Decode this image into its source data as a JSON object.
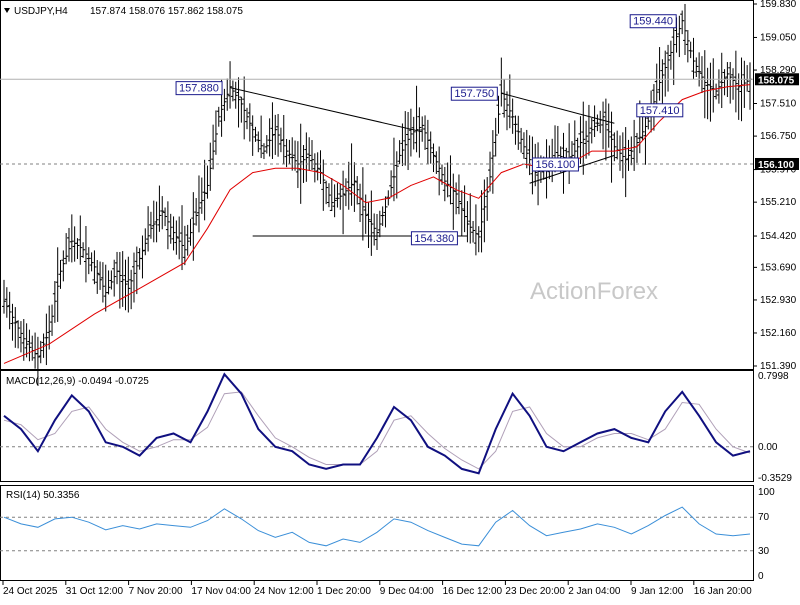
{
  "header": {
    "symbol": "USDJPY,H4",
    "ohlc": "157.874 158.076 157.862 158.075",
    "watermark": "ActionForex"
  },
  "chart_data": [
    {
      "type": "line",
      "name": "price-panel",
      "title": "USDJPY,H4  157.874 158.076 157.862 158.075",
      "ylim": [
        151.39,
        159.83
      ],
      "y_tick_labels": [
        "159.830",
        "159.050",
        "158.290",
        "157.510",
        "156.750",
        "155.970",
        "155.210",
        "154.420",
        "153.690",
        "152.930",
        "152.160",
        "151.390"
      ],
      "x_tick_labels": [
        "24 Oct 2025",
        "31 Oct 12:00",
        "7 Nov 20:00",
        "17 Nov 04:00",
        "24 Nov 12:00",
        "1 Dec 20:00",
        "9 Dec 04:00",
        "16 Dec 12:00",
        "23 Dec 20:00",
        "2 Jan 04:00",
        "9 Jan 12:00",
        "16 Jan 20:00"
      ],
      "current_price": "158.075",
      "support_level": "156.100",
      "price_points": [
        [
          0,
          152.9
        ],
        [
          2,
          152.4
        ],
        [
          4,
          151.9
        ],
        [
          6,
          151.6
        ],
        [
          8,
          152.2
        ],
        [
          10,
          153.6
        ],
        [
          12,
          154.3
        ],
        [
          14,
          154.1
        ],
        [
          16,
          153.7
        ],
        [
          18,
          153.1
        ],
        [
          20,
          153.6
        ],
        [
          22,
          153.2
        ],
        [
          24,
          153.9
        ],
        [
          26,
          154.6
        ],
        [
          28,
          155.0
        ],
        [
          30,
          154.5
        ],
        [
          32,
          154.1
        ],
        [
          34,
          154.9
        ],
        [
          36,
          155.6
        ],
        [
          38,
          157.2
        ],
        [
          40,
          157.9
        ],
        [
          42,
          157.5
        ],
        [
          44,
          156.9
        ],
        [
          46,
          156.4
        ],
        [
          48,
          156.9
        ],
        [
          50,
          156.4
        ],
        [
          52,
          156.1
        ],
        [
          54,
          156.3
        ],
        [
          56,
          155.9
        ],
        [
          58,
          155.2
        ],
        [
          60,
          155.4
        ],
        [
          62,
          155.7
        ],
        [
          64,
          154.9
        ],
        [
          66,
          154.5
        ],
        [
          68,
          155.3
        ],
        [
          70,
          156.3
        ],
        [
          72,
          156.8
        ],
        [
          74,
          157.0
        ],
        [
          76,
          156.3
        ],
        [
          78,
          155.7
        ],
        [
          80,
          155.4
        ],
        [
          82,
          154.7
        ],
        [
          84,
          154.4
        ],
        [
          86,
          155.8
        ],
        [
          88,
          157.75
        ],
        [
          90,
          157.2
        ],
        [
          92,
          156.5
        ],
        [
          94,
          155.9
        ],
        [
          96,
          156.0
        ],
        [
          98,
          156.3
        ],
        [
          100,
          156.2
        ],
        [
          102,
          156.6
        ],
        [
          104,
          156.9
        ],
        [
          106,
          157.2
        ],
        [
          108,
          156.5
        ],
        [
          110,
          156.2
        ],
        [
          112,
          156.6
        ],
        [
          114,
          157.1
        ],
        [
          116,
          158.0
        ],
        [
          118,
          158.7
        ],
        [
          120,
          159.44
        ],
        [
          122,
          158.5
        ],
        [
          124,
          158.0
        ],
        [
          126,
          157.8
        ],
        [
          128,
          158.2
        ],
        [
          130,
          157.9
        ],
        [
          132,
          158.075
        ]
      ],
      "ma_points": [
        [
          0,
          151.45
        ],
        [
          8,
          151.9
        ],
        [
          16,
          152.6
        ],
        [
          24,
          153.2
        ],
        [
          32,
          153.8
        ],
        [
          36,
          154.6
        ],
        [
          40,
          155.5
        ],
        [
          44,
          155.9
        ],
        [
          48,
          156.0
        ],
        [
          52,
          156.0
        ],
        [
          56,
          155.9
        ],
        [
          60,
          155.6
        ],
        [
          64,
          155.2
        ],
        [
          68,
          155.3
        ],
        [
          72,
          155.6
        ],
        [
          76,
          155.8
        ],
        [
          80,
          155.5
        ],
        [
          84,
          155.3
        ],
        [
          88,
          155.9
        ],
        [
          92,
          156.1
        ],
        [
          96,
          156.0
        ],
        [
          100,
          156.1
        ],
        [
          104,
          156.4
        ],
        [
          108,
          156.4
        ],
        [
          112,
          156.5
        ],
        [
          116,
          157.1
        ],
        [
          120,
          157.6
        ],
        [
          124,
          157.8
        ],
        [
          128,
          157.9
        ],
        [
          132,
          157.95
        ]
      ],
      "annotations": [
        {
          "text": "157.880",
          "x": 40,
          "y": 157.88
        },
        {
          "text": "157.750",
          "x": 88,
          "y": 157.75
        },
        {
          "text": "159.440",
          "x": 120,
          "y": 159.44
        },
        {
          "text": "157.410",
          "x": 124,
          "y": 157.41
        },
        {
          "text": "154.380",
          "x": 82,
          "y": 154.38
        },
        {
          "text": "156.100",
          "x": 102,
          "y": 156.1
        }
      ],
      "trendlines": [
        {
          "from": [
            40,
            157.88
          ],
          "to": [
            74,
            156.85
          ]
        },
        {
          "from": [
            88,
            157.75
          ],
          "to": [
            108,
            157.05
          ]
        },
        {
          "from": [
            93,
            155.65
          ],
          "to": [
            108,
            156.3
          ]
        },
        {
          "from": [
            44,
            154.42
          ],
          "to": [
            82,
            154.42
          ]
        }
      ],
      "grid": false
    },
    {
      "type": "line",
      "name": "macd-panel",
      "title": "MACD(12,26,9) -0.0494 -0.0725",
      "ylim": [
        -0.3529,
        0.7998
      ],
      "y_tick_labels": [
        "0.7998",
        "0.00",
        "-0.3529"
      ],
      "macd_points": [
        [
          0,
          0.35
        ],
        [
          3,
          0.2
        ],
        [
          6,
          -0.05
        ],
        [
          9,
          0.3
        ],
        [
          12,
          0.58
        ],
        [
          15,
          0.4
        ],
        [
          18,
          0.05
        ],
        [
          21,
          0.0
        ],
        [
          24,
          -0.1
        ],
        [
          27,
          0.1
        ],
        [
          30,
          0.15
        ],
        [
          33,
          0.05
        ],
        [
          36,
          0.4
        ],
        [
          39,
          0.82
        ],
        [
          42,
          0.6
        ],
        [
          45,
          0.2
        ],
        [
          48,
          0.0
        ],
        [
          51,
          -0.05
        ],
        [
          54,
          -0.2
        ],
        [
          57,
          -0.25
        ],
        [
          60,
          -0.2
        ],
        [
          63,
          -0.2
        ],
        [
          66,
          0.1
        ],
        [
          69,
          0.45
        ],
        [
          72,
          0.3
        ],
        [
          75,
          0.0
        ],
        [
          78,
          -0.1
        ],
        [
          81,
          -0.25
        ],
        [
          84,
          -0.3
        ],
        [
          87,
          0.2
        ],
        [
          90,
          0.6
        ],
        [
          93,
          0.35
        ],
        [
          96,
          0.0
        ],
        [
          99,
          -0.05
        ],
        [
          102,
          0.05
        ],
        [
          105,
          0.15
        ],
        [
          108,
          0.2
        ],
        [
          111,
          0.1
        ],
        [
          114,
          0.05
        ],
        [
          117,
          0.4
        ],
        [
          120,
          0.62
        ],
        [
          123,
          0.35
        ],
        [
          126,
          0.05
        ],
        [
          129,
          -0.1
        ],
        [
          132,
          -0.05
        ]
      ],
      "signal_points": [
        [
          0,
          0.3
        ],
        [
          3,
          0.25
        ],
        [
          6,
          0.08
        ],
        [
          9,
          0.15
        ],
        [
          12,
          0.4
        ],
        [
          15,
          0.45
        ],
        [
          18,
          0.2
        ],
        [
          21,
          0.05
        ],
        [
          24,
          -0.05
        ],
        [
          27,
          0.0
        ],
        [
          30,
          0.08
        ],
        [
          33,
          0.08
        ],
        [
          36,
          0.22
        ],
        [
          39,
          0.6
        ],
        [
          42,
          0.62
        ],
        [
          45,
          0.35
        ],
        [
          48,
          0.1
        ],
        [
          51,
          0.0
        ],
        [
          54,
          -0.12
        ],
        [
          57,
          -0.2
        ],
        [
          60,
          -0.2
        ],
        [
          63,
          -0.2
        ],
        [
          66,
          -0.05
        ],
        [
          69,
          0.3
        ],
        [
          72,
          0.35
        ],
        [
          75,
          0.15
        ],
        [
          78,
          -0.02
        ],
        [
          81,
          -0.15
        ],
        [
          84,
          -0.25
        ],
        [
          87,
          -0.05
        ],
        [
          90,
          0.4
        ],
        [
          93,
          0.45
        ],
        [
          96,
          0.15
        ],
        [
          99,
          0.0
        ],
        [
          102,
          0.0
        ],
        [
          105,
          0.1
        ],
        [
          108,
          0.15
        ],
        [
          111,
          0.15
        ],
        [
          114,
          0.08
        ],
        [
          117,
          0.2
        ],
        [
          120,
          0.5
        ],
        [
          123,
          0.48
        ],
        [
          126,
          0.2
        ],
        [
          129,
          0.0
        ],
        [
          132,
          -0.07
        ]
      ],
      "grid": false
    },
    {
      "type": "line",
      "name": "rsi-panel",
      "title": "RSI(14) 50.3356",
      "ylim": [
        0,
        100
      ],
      "y_tick_labels": [
        "100",
        "70",
        "30",
        "0"
      ],
      "levels": [
        70,
        30
      ],
      "rsi_points": [
        [
          0,
          70
        ],
        [
          3,
          62
        ],
        [
          6,
          58
        ],
        [
          9,
          68
        ],
        [
          12,
          70
        ],
        [
          15,
          64
        ],
        [
          18,
          55
        ],
        [
          21,
          60
        ],
        [
          24,
          56
        ],
        [
          27,
          62
        ],
        [
          30,
          60
        ],
        [
          33,
          58
        ],
        [
          36,
          66
        ],
        [
          39,
          80
        ],
        [
          42,
          68
        ],
        [
          45,
          54
        ],
        [
          48,
          46
        ],
        [
          51,
          52
        ],
        [
          54,
          40
        ],
        [
          57,
          36
        ],
        [
          60,
          44
        ],
        [
          63,
          40
        ],
        [
          66,
          52
        ],
        [
          69,
          68
        ],
        [
          72,
          64
        ],
        [
          75,
          54
        ],
        [
          78,
          46
        ],
        [
          81,
          38
        ],
        [
          84,
          36
        ],
        [
          87,
          64
        ],
        [
          90,
          78
        ],
        [
          93,
          60
        ],
        [
          96,
          48
        ],
        [
          99,
          52
        ],
        [
          102,
          56
        ],
        [
          105,
          62
        ],
        [
          108,
          58
        ],
        [
          111,
          50
        ],
        [
          114,
          60
        ],
        [
          117,
          72
        ],
        [
          120,
          82
        ],
        [
          123,
          62
        ],
        [
          126,
          50
        ],
        [
          129,
          48
        ],
        [
          132,
          50
        ]
      ],
      "grid": false
    }
  ],
  "colors": {
    "price": "#000000",
    "ma": "#e00000",
    "macd": "#101080",
    "signal": "#b0a0b8",
    "rsi": "#3b8fd8",
    "label_border": "#1a1a8c",
    "dashed": "#808080"
  }
}
